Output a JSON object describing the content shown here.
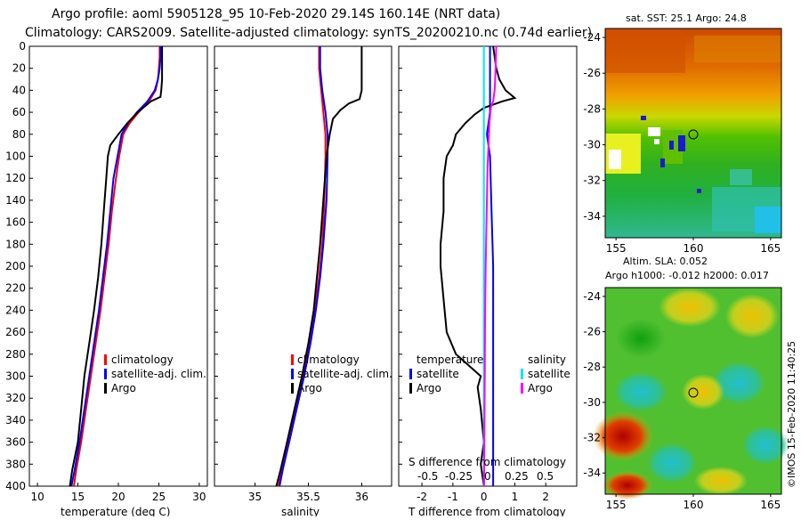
{
  "colors": {
    "climatology": "#ff0000",
    "satellite": "#0000ff",
    "argo": "#000000",
    "sal_satellite": "#00e5ff",
    "sal_argo": "#ff00ff"
  },
  "header": {
    "line1": "Argo profile: aoml 5905128_95 10-Feb-2020 29.14S 160.14E (NRT data)",
    "line2": "Climatology: CARS2009. Satellite-adjusted climatology: synTS_20200210.nc (0.74d earlier)"
  },
  "depth_ticks": [
    "0",
    "20",
    "40",
    "60",
    "80",
    "100",
    "120",
    "140",
    "160",
    "180",
    "200",
    "220",
    "240",
    "260",
    "280",
    "300",
    "320",
    "340",
    "360",
    "380",
    "400"
  ],
  "chart_data": [
    {
      "id": "temperature",
      "type": "line",
      "xlabel": "temperature (deg C)",
      "xlim": [
        9,
        31
      ],
      "ylim": [
        0,
        400
      ],
      "xticks": [
        "10",
        "15",
        "20",
        "25",
        "30"
      ],
      "legend": [
        "climatology",
        "satellite-adj. clim.",
        "Argo"
      ],
      "series": [
        {
          "name": "climatology",
          "color": "#ff0000",
          "points": [
            [
              25.1,
              0
            ],
            [
              25.1,
              10
            ],
            [
              25.0,
              20
            ],
            [
              24.9,
              30
            ],
            [
              24.6,
              40
            ],
            [
              23.8,
              50
            ],
            [
              22.5,
              60
            ],
            [
              21.4,
              70
            ],
            [
              20.6,
              80
            ],
            [
              20.1,
              100
            ],
            [
              19.7,
              120
            ],
            [
              19.2,
              150
            ],
            [
              18.8,
              180
            ],
            [
              18.3,
              210
            ],
            [
              17.8,
              240
            ],
            [
              17.2,
              270
            ],
            [
              16.6,
              300
            ],
            [
              16.0,
              330
            ],
            [
              15.4,
              360
            ],
            [
              14.8,
              385
            ],
            [
              14.5,
              400
            ]
          ]
        },
        {
          "name": "satellite-adj. clim.",
          "color": "#0000ff",
          "points": [
            [
              25.2,
              0
            ],
            [
              25.2,
              10
            ],
            [
              25.1,
              20
            ],
            [
              24.9,
              30
            ],
            [
              24.5,
              40
            ],
            [
              23.6,
              50
            ],
            [
              22.3,
              60
            ],
            [
              21.2,
              70
            ],
            [
              20.4,
              80
            ],
            [
              19.9,
              100
            ],
            [
              19.4,
              120
            ],
            [
              19.0,
              150
            ],
            [
              18.6,
              180
            ],
            [
              18.1,
              210
            ],
            [
              17.6,
              240
            ],
            [
              17.0,
              270
            ],
            [
              16.4,
              300
            ],
            [
              15.8,
              330
            ],
            [
              15.2,
              360
            ],
            [
              14.6,
              385
            ],
            [
              14.2,
              400
            ]
          ]
        },
        {
          "name": "Argo",
          "color": "#000000",
          "points": [
            [
              25.4,
              0
            ],
            [
              25.4,
              10
            ],
            [
              25.4,
              20
            ],
            [
              25.4,
              30
            ],
            [
              25.3,
              40
            ],
            [
              25.2,
              46
            ],
            [
              24.0,
              50
            ],
            [
              22.4,
              60
            ],
            [
              21.1,
              70
            ],
            [
              20.0,
              80
            ],
            [
              19.0,
              90
            ],
            [
              18.7,
              100
            ],
            [
              18.5,
              120
            ],
            [
              18.2,
              150
            ],
            [
              17.9,
              180
            ],
            [
              17.5,
              210
            ],
            [
              17.0,
              240
            ],
            [
              16.4,
              270
            ],
            [
              15.8,
              300
            ],
            [
              15.4,
              330
            ],
            [
              15.0,
              360
            ],
            [
              14.3,
              385
            ],
            [
              14.0,
              400
            ]
          ]
        }
      ]
    },
    {
      "id": "salinity",
      "type": "line",
      "xlabel": "salinity",
      "xlim": [
        34.62,
        36.28
      ],
      "ylim": [
        0,
        400
      ],
      "xticks": [
        "35",
        "35.5",
        "36"
      ],
      "legend": [
        "climatology",
        "satellite-adj. clim.",
        "Argo"
      ],
      "series": [
        {
          "name": "climatology",
          "color": "#ff0000",
          "points": [
            [
              35.6,
              0
            ],
            [
              35.6,
              20
            ],
            [
              35.62,
              40
            ],
            [
              35.64,
              60
            ],
            [
              35.66,
              80
            ],
            [
              35.66,
              100
            ],
            [
              35.65,
              140
            ],
            [
              35.63,
              180
            ],
            [
              35.6,
              210
            ],
            [
              35.56,
              240
            ],
            [
              35.51,
              270
            ],
            [
              35.45,
              300
            ],
            [
              35.38,
              330
            ],
            [
              35.31,
              360
            ],
            [
              35.25,
              385
            ],
            [
              35.22,
              400
            ]
          ]
        },
        {
          "name": "satellite-adj. clim.",
          "color": "#0000ff",
          "points": [
            [
              35.61,
              0
            ],
            [
              35.61,
              20
            ],
            [
              35.63,
              40
            ],
            [
              35.66,
              60
            ],
            [
              35.68,
              80
            ],
            [
              35.68,
              100
            ],
            [
              35.67,
              140
            ],
            [
              35.64,
              180
            ],
            [
              35.61,
              210
            ],
            [
              35.57,
              240
            ],
            [
              35.52,
              270
            ],
            [
              35.46,
              300
            ],
            [
              35.39,
              330
            ],
            [
              35.32,
              360
            ],
            [
              35.26,
              385
            ],
            [
              35.23,
              400
            ]
          ]
        },
        {
          "name": "Argo",
          "color": "#000000",
          "points": [
            [
              36.0,
              0
            ],
            [
              36.0,
              20
            ],
            [
              36.0,
              40
            ],
            [
              35.98,
              48
            ],
            [
              35.88,
              52
            ],
            [
              35.8,
              58
            ],
            [
              35.73,
              66
            ],
            [
              35.7,
              80
            ],
            [
              35.67,
              100
            ],
            [
              35.64,
              140
            ],
            [
              35.61,
              180
            ],
            [
              35.58,
              210
            ],
            [
              35.55,
              240
            ],
            [
              35.5,
              270
            ],
            [
              35.44,
              300
            ],
            [
              35.37,
              330
            ],
            [
              35.3,
              360
            ],
            [
              35.24,
              385
            ],
            [
              35.2,
              400
            ]
          ]
        }
      ]
    },
    {
      "id": "difference",
      "type": "line",
      "xlabel": "T difference from climatology",
      "top_axis_label": "S difference from climatology",
      "xlim": [
        -2.75,
        3.0
      ],
      "ylim": [
        0,
        400
      ],
      "xticks": [
        "-2",
        "-1",
        "0",
        "1",
        "2"
      ],
      "sticks": [
        "-0.5",
        "-0.25",
        "0",
        "0.25",
        "0.5"
      ],
      "legend_temperature": [
        "temperature",
        "satellite",
        "Argo"
      ],
      "legend_salinity": [
        "salinity",
        "satellite",
        "Argo"
      ],
      "series": [
        {
          "name": "temperature satellite",
          "color": "#0000ff",
          "points": [
            [
              0.2,
              0
            ],
            [
              0.2,
              20
            ],
            [
              0.2,
              40
            ],
            [
              0.2,
              60
            ],
            [
              0.1,
              80
            ],
            [
              0.2,
              100
            ],
            [
              0.25,
              150
            ],
            [
              0.3,
              200
            ],
            [
              0.3,
              250
            ],
            [
              0.3,
              300
            ],
            [
              0.3,
              350
            ],
            [
              0.3,
              400
            ]
          ]
        },
        {
          "name": "temperature Argo",
          "color": "#000000",
          "points": [
            [
              0.3,
              0
            ],
            [
              0.4,
              20
            ],
            [
              0.5,
              30
            ],
            [
              0.7,
              40
            ],
            [
              1.0,
              47
            ],
            [
              0.6,
              50
            ],
            [
              0.0,
              56
            ],
            [
              -0.3,
              62
            ],
            [
              -0.6,
              70
            ],
            [
              -0.9,
              80
            ],
            [
              -1.0,
              90
            ],
            [
              -1.2,
              100
            ],
            [
              -1.3,
              120
            ],
            [
              -1.3,
              150
            ],
            [
              -1.4,
              180
            ],
            [
              -1.4,
              200
            ],
            [
              -1.3,
              230
            ],
            [
              -1.2,
              260
            ],
            [
              -0.9,
              280
            ],
            [
              -0.5,
              290
            ],
            [
              -0.1,
              300
            ],
            [
              -0.2,
              310
            ],
            [
              -0.1,
              330
            ],
            [
              0.0,
              360
            ],
            [
              -0.1,
              380
            ],
            [
              0.0,
              400
            ]
          ]
        },
        {
          "name": "salinity satellite",
          "color": "#00e5ff",
          "points": [
            [
              0.0,
              0
            ],
            [
              0.0,
              50
            ],
            [
              0.0,
              100
            ],
            [
              0.0,
              200
            ],
            [
              0.0,
              300
            ],
            [
              0.0,
              400
            ]
          ]
        },
        {
          "name": "salinity Argo",
          "color": "#ff00ff",
          "points": [
            [
              0.4,
              0
            ],
            [
              0.38,
              20
            ],
            [
              0.35,
              40
            ],
            [
              0.3,
              50
            ],
            [
              0.23,
              55
            ],
            [
              0.18,
              70
            ],
            [
              0.15,
              90
            ],
            [
              0.12,
              110
            ],
            [
              0.1,
              140
            ],
            [
              0.08,
              170
            ],
            [
              0.06,
              200
            ],
            [
              0.04,
              250
            ],
            [
              0.03,
              300
            ],
            [
              0.02,
              350
            ],
            [
              0.01,
              400
            ]
          ]
        }
      ]
    }
  ],
  "maps": {
    "sst": {
      "title": "sat. SST: 25.1 Argo: 24.8",
      "yticks": [
        "-24",
        "-26",
        "-28",
        "-30",
        "-32",
        "-34"
      ],
      "xticks": [
        "155",
        "160",
        "165"
      ],
      "float_lon": 160.14,
      "float_lat": -29.14
    },
    "sla": {
      "title1": "Altim. SLA: 0.052",
      "title2": "Argo h1000: -0.012 h2000: 0.017",
      "yticks": [
        "-24",
        "-26",
        "-28",
        "-30",
        "-32",
        "-34"
      ],
      "xticks": [
        "155",
        "160",
        "165"
      ],
      "float_lon": 160.14,
      "float_lat": -29.14
    }
  },
  "credit": "©IMOS 15-Feb-2020 11:40:25"
}
